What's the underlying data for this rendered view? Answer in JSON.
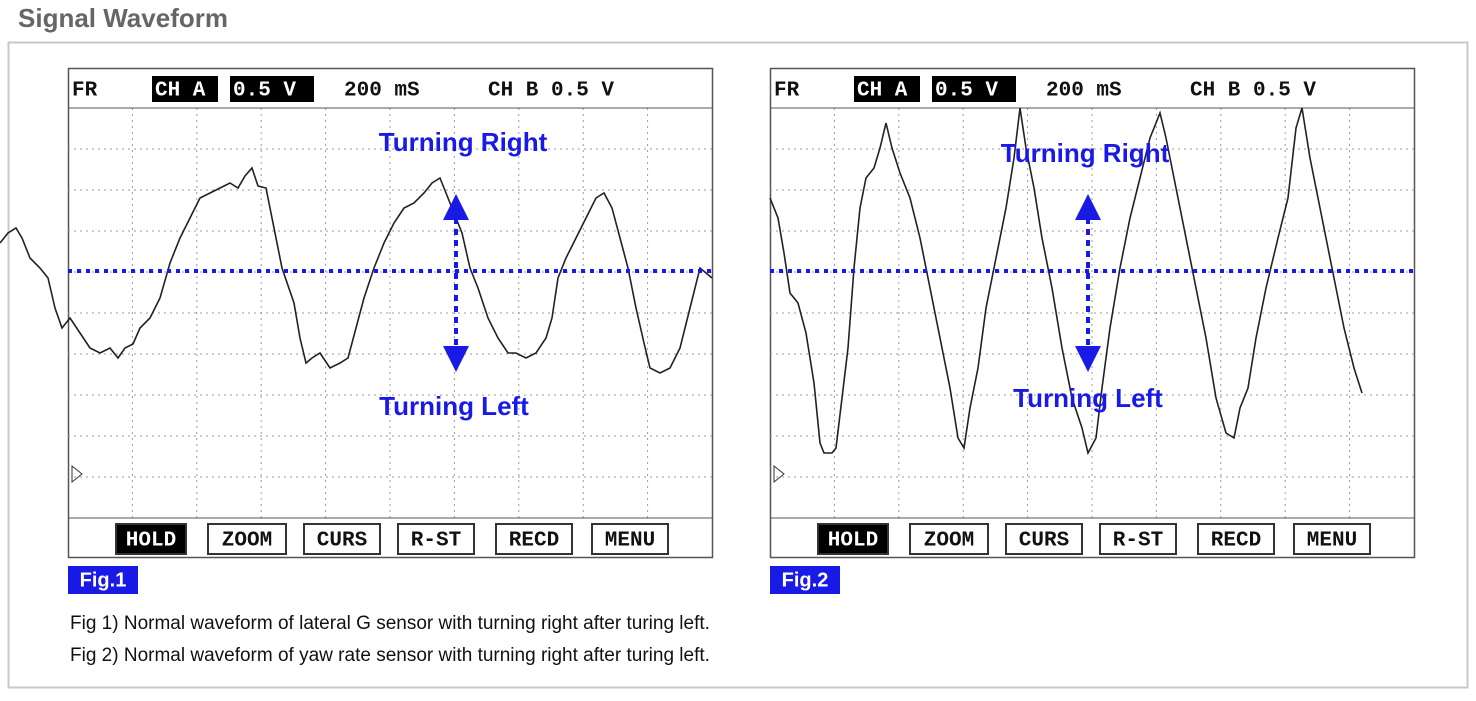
{
  "title": "Signal Waveform",
  "screens": [
    {
      "header": {
        "fr": "FR",
        "ch_a": "CH A",
        "volt_a": "0.5 V",
        "time": "200 mS",
        "ch_b": "CH B 0.5 V"
      },
      "annotations": {
        "right": "Turning Right",
        "left": "Turning Left"
      },
      "buttons": [
        "HOLD",
        "ZOOM",
        "CURS",
        "R-ST",
        "RECD",
        "MENU"
      ],
      "label": "Fig.1"
    },
    {
      "header": {
        "fr": "FR",
        "ch_a": "CH A",
        "volt_a": "0.5 V",
        "time": "200 mS",
        "ch_b": "CH B 0.5 V"
      },
      "annotations": {
        "right": "Turning Right",
        "left": "Turning Left"
      },
      "buttons": [
        "HOLD",
        "ZOOM",
        "CURS",
        "R-ST",
        "RECD",
        "MENU"
      ],
      "label": "Fig.2"
    }
  ],
  "captions": [
    "Fig 1) Normal waveform of lateral G sensor with turning right after turing left.",
    "Fig 2) Normal waveform of yaw rate sensor with turning right after turing left."
  ]
}
